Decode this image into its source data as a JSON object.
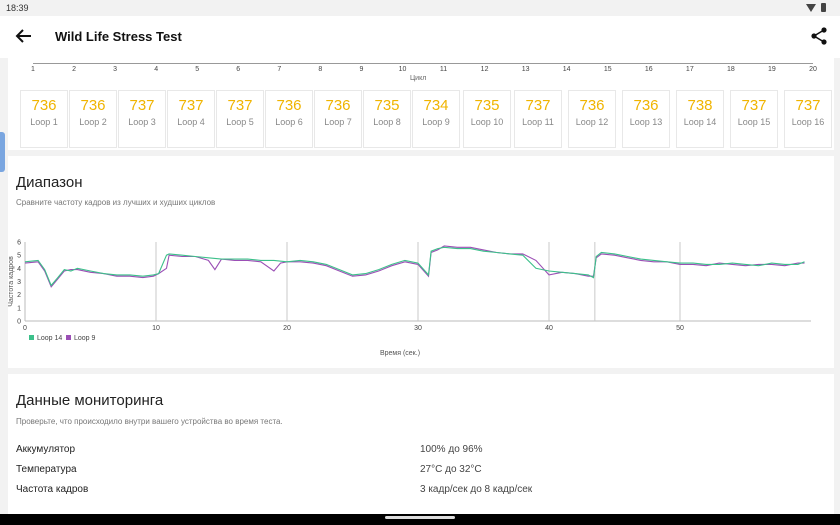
{
  "status": {
    "time": "18:39"
  },
  "appbar": {
    "title": "Wild Life Stress Test"
  },
  "cycle_axis": {
    "ticks": [
      "1",
      "2",
      "3",
      "4",
      "5",
      "6",
      "7",
      "8",
      "9",
      "10",
      "11",
      "12",
      "13",
      "14",
      "15",
      "16",
      "17",
      "18",
      "19",
      "20"
    ],
    "label": "Цикл"
  },
  "loops": [
    {
      "value": "736",
      "label": "Loop 1"
    },
    {
      "value": "736",
      "label": "Loop 2"
    },
    {
      "value": "737",
      "label": "Loop 3"
    },
    {
      "value": "737",
      "label": "Loop 4"
    },
    {
      "value": "737",
      "label": "Loop 5"
    },
    {
      "value": "736",
      "label": "Loop 6"
    },
    {
      "value": "736",
      "label": "Loop 7"
    },
    {
      "value": "735",
      "label": "Loop 8"
    },
    {
      "value": "734",
      "label": "Loop 9"
    },
    {
      "value": "735",
      "label": "Loop 10"
    },
    {
      "value": "737",
      "label": "Loop 11"
    },
    {
      "value": "736",
      "label": "Loop 12"
    },
    {
      "value": "736",
      "label": "Loop 13"
    },
    {
      "value": "738",
      "label": "Loop 14"
    },
    {
      "value": "737",
      "label": "Loop 15"
    },
    {
      "value": "737",
      "label": "Loop 16"
    }
  ],
  "range": {
    "title": "Диапазон",
    "subtitle": "Сравните частоту кадров из лучших и худших циклов"
  },
  "chart_data": {
    "type": "line",
    "ylabel": "Частота кадров",
    "xlabel": "Время (сек.)",
    "x_ticks": [
      "0",
      "10",
      "20",
      "30",
      "40",
      "50"
    ],
    "y_ticks": [
      "0",
      "1",
      "2",
      "3",
      "4",
      "5",
      "6"
    ],
    "xlim": [
      0,
      60
    ],
    "ylim": [
      0,
      6
    ],
    "legend_position": "bottom-left",
    "series": [
      {
        "name": "Loop 14",
        "color": "#3cc08a",
        "x": [
          0,
          1,
          1.5,
          2,
          2.5,
          3,
          3.5,
          4,
          5,
          6,
          7,
          8,
          9,
          9.8,
          10.2,
          10.8,
          11,
          12,
          13,
          14,
          15,
          16,
          17,
          18,
          19,
          20,
          21,
          22,
          23,
          24,
          25,
          26,
          27,
          28,
          29,
          30,
          30.8,
          31,
          31.5,
          32,
          33,
          34,
          35,
          36,
          37,
          38,
          39,
          40,
          41,
          42,
          43,
          43.4,
          43.6,
          44,
          45,
          46,
          47,
          48,
          49,
          50,
          51,
          52,
          53,
          54,
          55,
          56,
          57,
          58,
          59,
          59.5
        ],
        "y": [
          4.5,
          4.6,
          3.9,
          2.7,
          3.3,
          3.9,
          3.8,
          4.0,
          3.8,
          3.6,
          3.5,
          3.5,
          3.4,
          3.5,
          3.6,
          5.0,
          5.1,
          5.0,
          4.9,
          4.8,
          4.7,
          4.7,
          4.7,
          4.6,
          4.6,
          4.5,
          4.6,
          4.5,
          4.3,
          3.9,
          3.5,
          3.6,
          3.9,
          4.3,
          4.6,
          4.4,
          3.5,
          5.3,
          5.5,
          5.6,
          5.5,
          5.5,
          5.3,
          5.2,
          5.1,
          5.0,
          4.0,
          3.8,
          3.7,
          3.6,
          3.5,
          3.3,
          4.9,
          5.2,
          5.1,
          4.9,
          4.7,
          4.6,
          4.5,
          4.4,
          4.4,
          4.3,
          4.3,
          4.4,
          4.3,
          4.2,
          4.4,
          4.3,
          4.3,
          4.5
        ]
      },
      {
        "name": "Loop 9",
        "color": "#9b4fb5",
        "x": [
          0,
          1,
          1.5,
          2,
          2.5,
          3,
          3.5,
          4,
          5,
          6,
          7,
          8,
          9,
          9.8,
          10.2,
          10.8,
          11,
          12,
          13,
          14,
          14.5,
          15,
          16,
          17,
          18,
          19,
          19.5,
          20,
          21,
          22,
          23,
          24,
          25,
          26,
          27,
          28,
          29,
          30,
          30.8,
          31,
          31.5,
          32,
          33,
          34,
          35,
          36,
          37,
          38,
          39,
          40,
          41,
          42,
          43,
          43.4,
          43.6,
          44,
          45,
          46,
          47,
          48,
          49,
          50,
          51,
          52,
          53,
          54,
          55,
          56,
          57,
          58,
          59,
          59.5
        ],
        "y": [
          4.4,
          4.5,
          3.8,
          2.6,
          3.2,
          3.8,
          3.9,
          3.9,
          3.7,
          3.6,
          3.4,
          3.4,
          3.3,
          3.4,
          3.6,
          4.0,
          5.0,
          4.9,
          4.9,
          4.6,
          3.9,
          4.7,
          4.6,
          4.6,
          4.5,
          3.8,
          4.4,
          4.5,
          4.5,
          4.4,
          4.2,
          3.8,
          3.4,
          3.5,
          3.8,
          4.2,
          4.5,
          4.3,
          3.4,
          5.2,
          5.4,
          5.7,
          5.6,
          5.6,
          5.4,
          5.2,
          5.1,
          5.1,
          4.6,
          3.5,
          3.7,
          3.6,
          3.4,
          3.4,
          4.8,
          5.1,
          5.0,
          4.8,
          4.6,
          4.5,
          4.5,
          4.3,
          4.3,
          4.2,
          4.4,
          4.3,
          4.2,
          4.3,
          4.3,
          4.2,
          4.4,
          4.4
        ]
      }
    ]
  },
  "monitoring": {
    "title": "Данные мониторинга",
    "subtitle": "Проверьте, что происходило внутри вашего устройства во время теста.",
    "rows": [
      {
        "label": "Аккумулятор",
        "value": "100% до 96%"
      },
      {
        "label": "Температура",
        "value": "27°C до 32°C"
      },
      {
        "label": "Частота кадров",
        "value": "3 кадр/сек до 8 кадр/сек"
      }
    ]
  }
}
